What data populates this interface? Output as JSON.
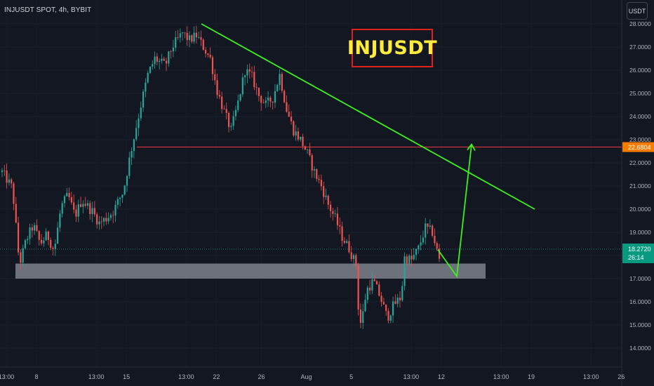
{
  "symbol_info": "INJUSDT SPOT, 4h, BYBIT",
  "currency_label": "USDT",
  "banner_text": "INJUSDT",
  "colors": {
    "background": "#131722",
    "up": "#26a69a",
    "down": "#ef5350",
    "trendline": "#3cf21f",
    "resistance": "#f23645",
    "support_zone": "#787b86",
    "banner_border": "#e0201b",
    "banner_text": "#ffeb3b"
  },
  "chart_data": {
    "type": "candlestick",
    "y_axis": {
      "min": 13.5,
      "max": 28.1,
      "ticks": [
        "14.0000",
        "15.0000",
        "16.0000",
        "17.0000",
        "18.0000",
        "19.0000",
        "20.0000",
        "21.0000",
        "22.0000",
        "23.0000",
        "24.0000",
        "25.0000",
        "26.0000",
        "27.0000",
        "28.0000"
      ]
    },
    "x_axis": {
      "days_visible": 34.3,
      "ticks": [
        {
          "label": "13:00",
          "day": 0.33
        },
        {
          "label": "8",
          "day": 1.0
        },
        {
          "label": "13:00",
          "day": 2.33
        },
        {
          "label": "15",
          "day": 3.0
        },
        {
          "label": "13:00",
          "day": 4.33
        },
        {
          "label": "22",
          "day": 5.0
        },
        {
          "label": "26",
          "day": 6.0
        },
        {
          "label": "Aug",
          "day": 7.0
        },
        {
          "label": "5",
          "day": 8.0
        },
        {
          "label": "13:00",
          "day": 9.33
        },
        {
          "label": "12",
          "day": 10.0
        },
        {
          "label": "13:00",
          "day": 11.33
        },
        {
          "label": "19",
          "day": 12.0
        },
        {
          "label": "13:00",
          "day": 13.33
        },
        {
          "label": "26",
          "day": 14.0
        }
      ]
    },
    "price_path": [
      [
        0,
        21.6
      ],
      [
        3,
        20.9
      ],
      [
        5,
        17.6
      ],
      [
        7,
        18.7
      ],
      [
        9,
        19.3
      ],
      [
        11,
        18.5
      ],
      [
        13,
        18.9
      ],
      [
        15,
        18.2
      ],
      [
        17,
        20.1
      ],
      [
        19,
        20.6
      ],
      [
        21,
        19.7
      ],
      [
        23,
        20.4
      ],
      [
        26,
        19.9
      ],
      [
        28,
        19.4
      ],
      [
        30,
        19.6
      ],
      [
        32,
        19.9
      ],
      [
        35,
        20.8
      ],
      [
        37,
        22.4
      ],
      [
        40,
        24.5
      ],
      [
        42,
        25.8
      ],
      [
        44,
        26.5
      ],
      [
        47,
        26.2
      ],
      [
        49,
        27.0
      ],
      [
        52,
        27.6
      ],
      [
        54,
        27.3
      ],
      [
        56,
        27.5
      ],
      [
        58,
        27.0
      ],
      [
        60,
        26.5
      ],
      [
        62,
        25.1
      ],
      [
        64,
        24.2
      ],
      [
        66,
        23.4
      ],
      [
        68,
        24.6
      ],
      [
        70,
        26.0
      ],
      [
        72,
        25.7
      ],
      [
        74,
        24.9
      ],
      [
        76,
        24.5
      ],
      [
        78,
        24.8
      ],
      [
        80,
        25.8
      ],
      [
        82,
        24.3
      ],
      [
        84,
        23.4
      ],
      [
        86,
        23.0
      ],
      [
        88,
        22.4
      ],
      [
        90,
        21.6
      ],
      [
        92,
        21.0
      ],
      [
        94,
        20.2
      ],
      [
        96,
        19.6
      ],
      [
        98,
        18.8
      ],
      [
        100,
        18.3
      ],
      [
        102,
        17.6
      ],
      [
        103,
        14.9
      ],
      [
        104,
        15.5
      ],
      [
        105,
        16.5
      ],
      [
        107,
        16.9
      ],
      [
        109,
        16.2
      ],
      [
        111,
        15.3
      ],
      [
        113,
        15.9
      ],
      [
        115,
        16.2
      ],
      [
        116,
        17.9
      ],
      [
        118,
        17.8
      ],
      [
        120,
        18.3
      ],
      [
        122,
        19.2
      ],
      [
        124,
        19.0
      ],
      [
        126,
        17.8
      ]
    ],
    "last_price": "18.2720",
    "countdown": "26:14",
    "horizontal_level": {
      "price": 22.6804,
      "label": "22.6804"
    },
    "support_zone": {
      "from": 17.0,
      "to": 17.65
    },
    "trendline": {
      "from": {
        "day": 5.02,
        "price": 28.0
      },
      "to": {
        "day": 14.0,
        "price": 20.0
      }
    },
    "projection": [
      {
        "day": 11.17,
        "price": 18.25
      },
      {
        "day": 11.7,
        "price": 17.1
      },
      {
        "day": 12.4,
        "price": 22.8
      }
    ]
  }
}
